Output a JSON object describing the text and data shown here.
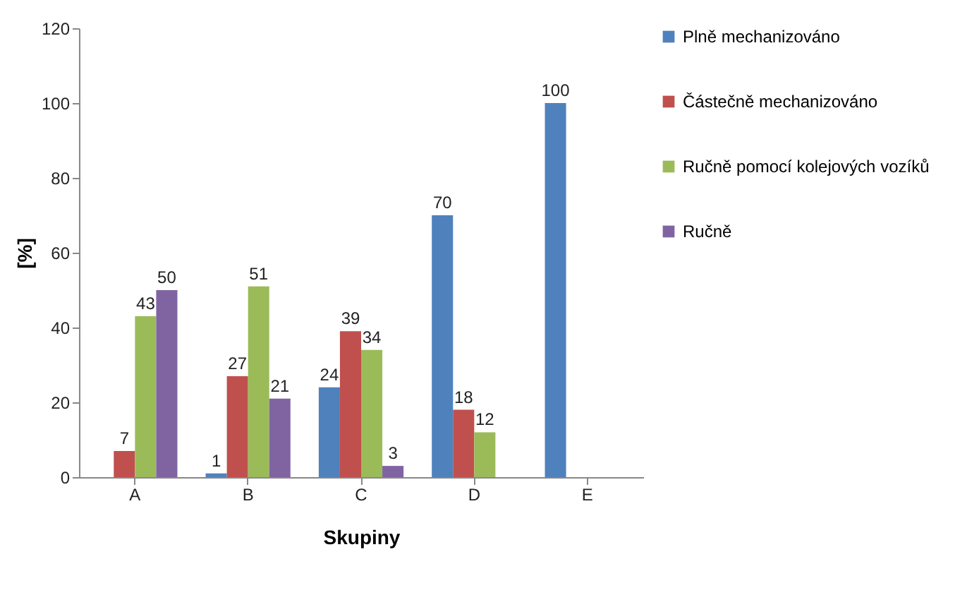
{
  "chart_data": {
    "type": "bar",
    "xlabel": "Skupiny",
    "ylabel": "[%]",
    "categories": [
      "A",
      "B",
      "C",
      "D",
      "E"
    ],
    "series": [
      {
        "name": "Plně mechanizováno",
        "color": "#4f81bd",
        "values": [
          null,
          1,
          24,
          70,
          100
        ]
      },
      {
        "name": "Částečně mechanizováno",
        "color": "#c0504d",
        "values": [
          7,
          27,
          39,
          18,
          null
        ]
      },
      {
        "name": "Ručně pomocí kolejových vozíků",
        "color": "#9bbb59",
        "values": [
          43,
          51,
          34,
          12,
          null
        ]
      },
      {
        "name": "Ručně",
        "color": "#8064a2",
        "values": [
          50,
          21,
          3,
          null,
          null
        ]
      }
    ],
    "ylim": [
      0,
      120
    ],
    "yticks": [
      0,
      20,
      40,
      60,
      80,
      100,
      120
    ],
    "grid": false,
    "legend": "right",
    "data_labels": true
  }
}
